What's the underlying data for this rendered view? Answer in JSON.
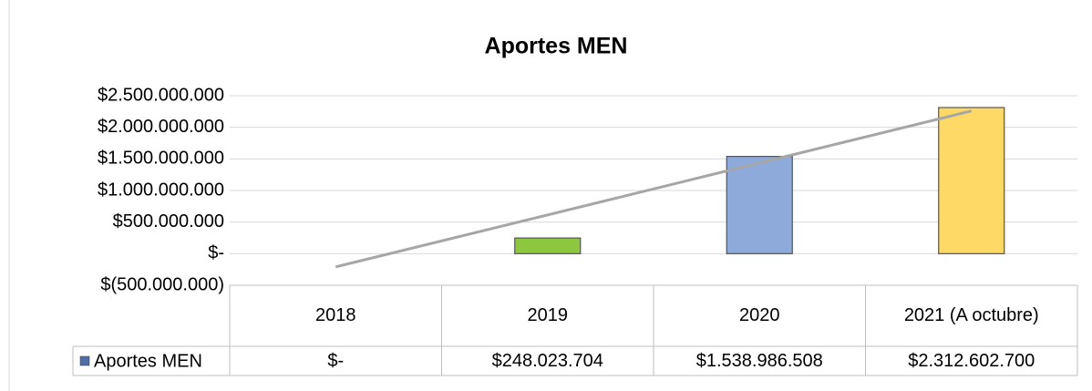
{
  "chart_data": {
    "type": "bar",
    "title": "Aportes MEN",
    "categories": [
      "2018",
      "2019",
      "2020",
      "2021 (A octubre)"
    ],
    "series": [
      {
        "name": "Aportes MEN",
        "color": "#4f6fa8",
        "colors": [
          "#8eaadb",
          "#8dc63f",
          "#8eaadb",
          "#ffd966"
        ],
        "values": [
          0,
          248023704,
          1538986508,
          2312602700
        ],
        "value_labels": [
          "$-",
          "$248.023.704",
          "$1.538.986.508",
          "$2.312.602.700"
        ]
      }
    ],
    "ylim": [
      -500000000,
      2500000000
    ],
    "yticks": [
      {
        "value": -500000000,
        "label": "$(500.000.000)"
      },
      {
        "value": 0,
        "label": "$-"
      },
      {
        "value": 500000000,
        "label": "$500.000.000"
      },
      {
        "value": 1000000000,
        "label": "$1.000.000.000"
      },
      {
        "value": 1500000000,
        "label": "$1.500.000.000"
      },
      {
        "value": 2000000000,
        "label": "$2.000.000.000"
      },
      {
        "value": 2500000000,
        "label": "$2.500.000.000"
      }
    ],
    "grid": true,
    "trendline": {
      "type": "linear",
      "color": "#a6a6a6"
    }
  }
}
